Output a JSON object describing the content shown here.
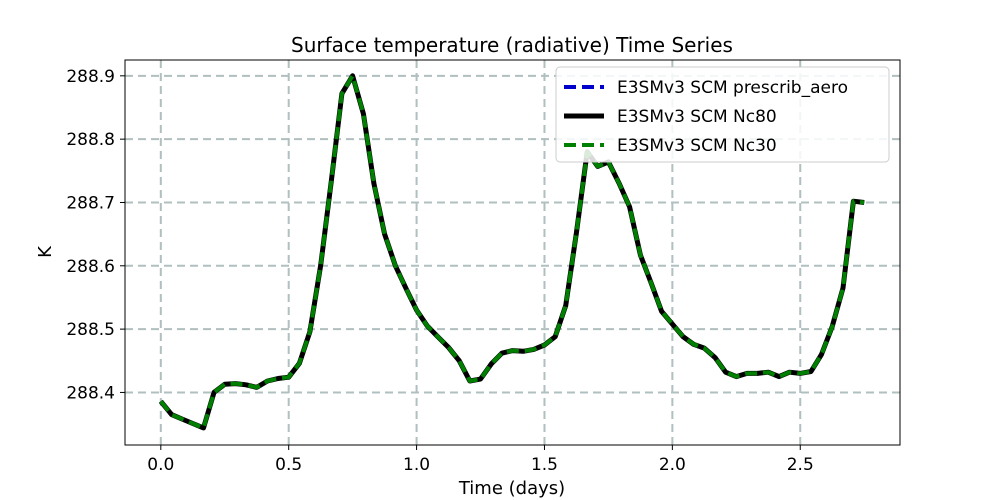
{
  "chart_data": {
    "type": "line",
    "title": "Surface temperature (radiative) Time Series",
    "xlabel": "Time (days)",
    "ylabel": "K",
    "xlim": [
      -0.14,
      2.89
    ],
    "ylim": [
      288.317,
      288.925
    ],
    "grid": true,
    "legend_position": "top-right",
    "x_ticks": [
      0.0,
      0.5,
      1.0,
      1.5,
      2.0,
      2.5
    ],
    "x_tick_labels": [
      "0.0",
      "0.5",
      "1.0",
      "1.5",
      "2.0",
      "2.5"
    ],
    "y_ticks": [
      288.4,
      288.5,
      288.6,
      288.7,
      288.8,
      288.9
    ],
    "y_tick_labels": [
      "288.4",
      "288.5",
      "288.6",
      "288.7",
      "288.8",
      "288.9"
    ],
    "x": [
      0.0,
      0.042,
      0.083,
      0.125,
      0.167,
      0.208,
      0.25,
      0.292,
      0.333,
      0.375,
      0.417,
      0.458,
      0.5,
      0.542,
      0.583,
      0.625,
      0.667,
      0.708,
      0.75,
      0.792,
      0.833,
      0.875,
      0.917,
      0.958,
      1.0,
      1.042,
      1.083,
      1.125,
      1.167,
      1.208,
      1.25,
      1.292,
      1.333,
      1.375,
      1.417,
      1.458,
      1.5,
      1.542,
      1.583,
      1.625,
      1.667,
      1.708,
      1.75,
      1.792,
      1.833,
      1.875,
      1.917,
      1.958,
      2.0,
      2.042,
      2.083,
      2.125,
      2.167,
      2.208,
      2.25,
      2.292,
      2.333,
      2.375,
      2.417,
      2.458,
      2.5,
      2.542,
      2.583,
      2.625,
      2.667,
      2.708,
      2.75
    ],
    "series": [
      {
        "name": "E3SMv3 SCM prescrib_aero",
        "color": "#0000cc",
        "style": "dashed",
        "values": [
          288.386,
          288.365,
          288.358,
          288.351,
          288.344,
          288.4,
          288.413,
          288.414,
          288.412,
          288.408,
          288.418,
          288.422,
          288.424,
          288.446,
          288.496,
          288.601,
          288.735,
          288.872,
          288.9,
          288.84,
          288.73,
          288.65,
          288.6,
          288.565,
          288.53,
          288.505,
          288.488,
          288.471,
          288.45,
          288.418,
          288.421,
          288.445,
          288.462,
          288.466,
          288.465,
          288.468,
          288.475,
          288.488,
          288.537,
          288.652,
          288.78,
          288.757,
          288.764,
          288.73,
          288.693,
          288.617,
          288.573,
          288.528,
          288.508,
          288.488,
          288.476,
          288.47,
          288.455,
          288.432,
          288.425,
          288.43,
          288.43,
          288.432,
          288.425,
          288.432,
          288.43,
          288.433,
          288.46,
          288.504,
          288.565,
          288.702,
          288.7
        ]
      },
      {
        "name": "E3SMv3 SCM Nc80",
        "color": "#000000",
        "style": "solid",
        "values": [
          288.386,
          288.365,
          288.358,
          288.351,
          288.344,
          288.4,
          288.413,
          288.414,
          288.412,
          288.408,
          288.418,
          288.422,
          288.424,
          288.446,
          288.496,
          288.601,
          288.735,
          288.872,
          288.9,
          288.84,
          288.73,
          288.65,
          288.6,
          288.565,
          288.53,
          288.505,
          288.488,
          288.471,
          288.45,
          288.418,
          288.421,
          288.445,
          288.462,
          288.466,
          288.465,
          288.468,
          288.475,
          288.488,
          288.537,
          288.652,
          288.78,
          288.757,
          288.764,
          288.73,
          288.693,
          288.617,
          288.573,
          288.528,
          288.508,
          288.488,
          288.476,
          288.47,
          288.455,
          288.432,
          288.425,
          288.43,
          288.43,
          288.432,
          288.425,
          288.432,
          288.43,
          288.433,
          288.46,
          288.504,
          288.565,
          288.702,
          288.7
        ]
      },
      {
        "name": "E3SMv3 SCM Nc30",
        "color": "#008000",
        "style": "dashed",
        "values": [
          288.386,
          288.365,
          288.358,
          288.351,
          288.344,
          288.4,
          288.413,
          288.414,
          288.412,
          288.408,
          288.418,
          288.422,
          288.424,
          288.446,
          288.496,
          288.601,
          288.735,
          288.872,
          288.9,
          288.84,
          288.73,
          288.65,
          288.6,
          288.565,
          288.53,
          288.505,
          288.488,
          288.471,
          288.45,
          288.418,
          288.421,
          288.445,
          288.462,
          288.466,
          288.465,
          288.468,
          288.475,
          288.488,
          288.537,
          288.652,
          288.78,
          288.757,
          288.764,
          288.73,
          288.693,
          288.617,
          288.573,
          288.528,
          288.508,
          288.488,
          288.476,
          288.47,
          288.455,
          288.432,
          288.425,
          288.43,
          288.43,
          288.432,
          288.425,
          288.432,
          288.43,
          288.433,
          288.46,
          288.504,
          288.565,
          288.702,
          288.7
        ]
      }
    ]
  }
}
